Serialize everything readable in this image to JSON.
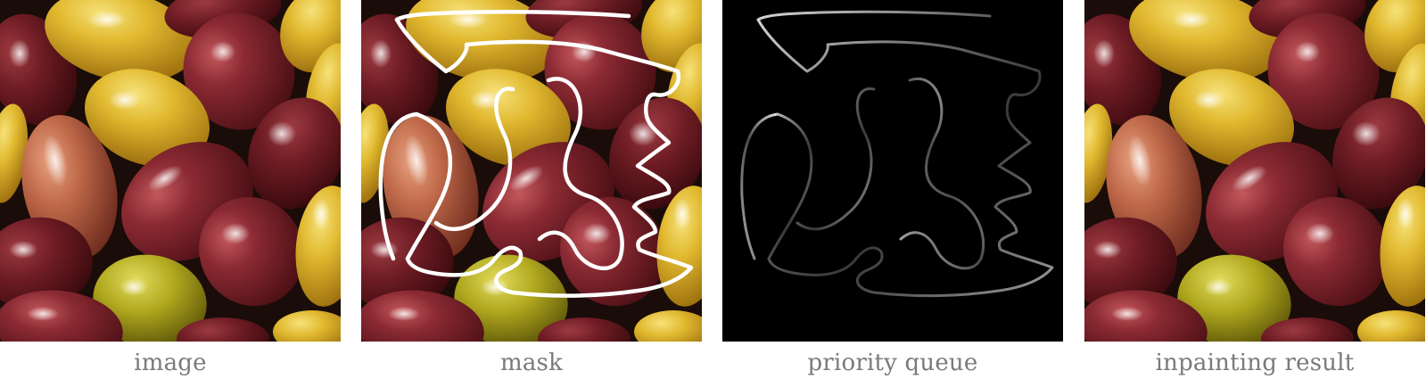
{
  "captions": {
    "image": "image",
    "mask": "mask",
    "priority_queue": "priority queue",
    "inpainting_result": "inpainting result"
  },
  "colors": {
    "background": "#ffffff",
    "caption_text": "#7a7a7a",
    "olive_red_dark": "#5a141a",
    "olive_red": "#7e2430",
    "olive_red_light": "#a8434a",
    "olive_yellow": "#d8b028",
    "olive_yellow_light": "#edd25a",
    "olive_green": "#a8a018",
    "olive_orange": "#bf6a4a",
    "shadow": "#1a0c08",
    "mask_stroke": "#ffffff",
    "queue_background": "#000000"
  }
}
